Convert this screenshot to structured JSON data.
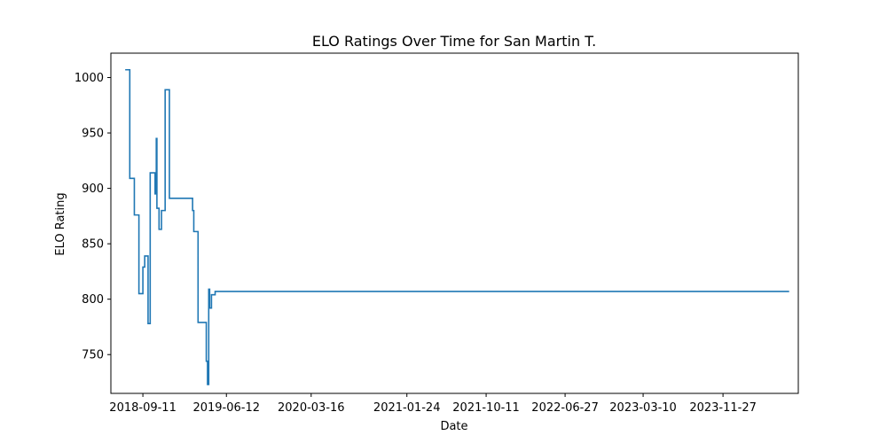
{
  "chart_data": {
    "type": "line",
    "title": "ELO Ratings Over Time for San Martin T.",
    "xlabel": "Date",
    "ylabel": "ELO Rating",
    "x_ticks": [
      "2018-09-11",
      "2019-06-12",
      "2020-03-16",
      "2021-01-24",
      "2021-10-11",
      "2022-06-27",
      "2023-03-10",
      "2023-11-27"
    ],
    "y_ticks": [
      750,
      800,
      850,
      900,
      950,
      1000
    ],
    "xlim": [
      "2018-05-29",
      "2024-07-31"
    ],
    "ylim": [
      715,
      1022
    ],
    "grid": false,
    "legend": "none",
    "line_style": "steps-post",
    "color": "#1f77b4",
    "series": [
      {
        "x": [
          "2018-07-15",
          "2018-07-30",
          "2018-08-14",
          "2018-08-29",
          "2018-09-11",
          "2018-09-17",
          "2018-09-28",
          "2018-10-05",
          "2018-10-21",
          "2018-10-25",
          "2018-10-27",
          "2018-11-03",
          "2018-11-06",
          "2018-11-11",
          "2018-11-23",
          "2018-12-07",
          "2018-12-10",
          "2018-12-14",
          "2019-02-21",
          "2019-02-25",
          "2019-03-11",
          "2019-04-07",
          "2019-04-11",
          "2019-04-15",
          "2019-04-18",
          "2019-04-24",
          "2019-05-06",
          "2024-07-01"
        ],
        "y": [
          1007,
          909,
          876,
          805,
          829,
          839,
          778,
          914,
          895,
          945,
          882,
          863,
          863,
          880,
          989,
          891,
          891,
          891,
          880,
          861,
          779,
          744,
          723,
          809,
          792,
          804,
          807,
          807
        ]
      }
    ]
  }
}
